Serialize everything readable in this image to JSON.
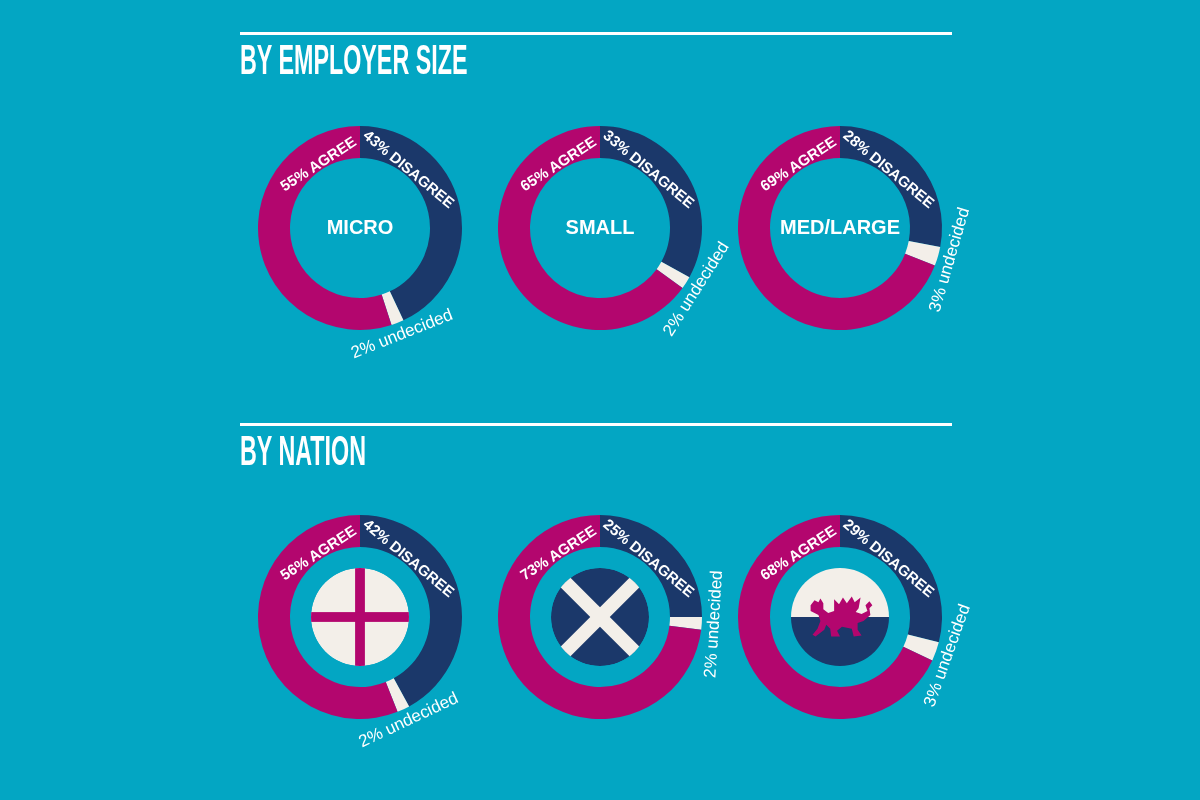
{
  "chart_data": [
    {
      "type": "other",
      "title": "BY EMPLOYER SIZE"
    },
    {
      "type": "donut",
      "title": "MICRO",
      "categories": [
        "DISAGREE",
        "undecided",
        "AGREE"
      ],
      "values": [
        43,
        2,
        55
      ],
      "colors": [
        "#1b386a",
        "#f3efe9",
        "#b3066e"
      ],
      "value_labels": [
        "43%",
        "2%",
        "55%"
      ]
    },
    {
      "type": "donut",
      "title": "SMALL",
      "categories": [
        "DISAGREE",
        "undecided",
        "AGREE"
      ],
      "values": [
        33,
        2,
        65
      ],
      "colors": [
        "#1b386a",
        "#f3efe9",
        "#b3066e"
      ],
      "value_labels": [
        "33%",
        "2%",
        "65%"
      ]
    },
    {
      "type": "donut",
      "title": "MED/LARGE",
      "categories": [
        "DISAGREE",
        "undecided",
        "AGREE"
      ],
      "values": [
        28,
        3,
        69
      ],
      "colors": [
        "#1b386a",
        "#f3efe9",
        "#b3066e"
      ],
      "value_labels": [
        "28%",
        "3%",
        "69%"
      ]
    },
    {
      "type": "other",
      "title": "BY NATION"
    },
    {
      "type": "donut",
      "categories": [
        "DISAGREE",
        "undecided",
        "AGREE"
      ],
      "values": [
        42,
        2,
        56
      ],
      "colors": [
        "#1b386a",
        "#f3efe9",
        "#b3066e"
      ],
      "value_labels": [
        "42%",
        "2%",
        "56%"
      ]
    },
    {
      "type": "donut",
      "categories": [
        "DISAGREE",
        "undecided",
        "AGREE"
      ],
      "values": [
        25,
        2,
        73
      ],
      "colors": [
        "#1b386a",
        "#f3efe9",
        "#b3066e"
      ],
      "value_labels": [
        "25%",
        "2%",
        "73%"
      ]
    },
    {
      "type": "donut",
      "categories": [
        "DISAGREE",
        "undecided",
        "AGREE"
      ],
      "values": [
        29,
        3,
        68
      ],
      "colors": [
        "#1b386a",
        "#f3efe9",
        "#b3066e"
      ],
      "value_labels": [
        "29%",
        "3%",
        "68%"
      ]
    }
  ]
}
